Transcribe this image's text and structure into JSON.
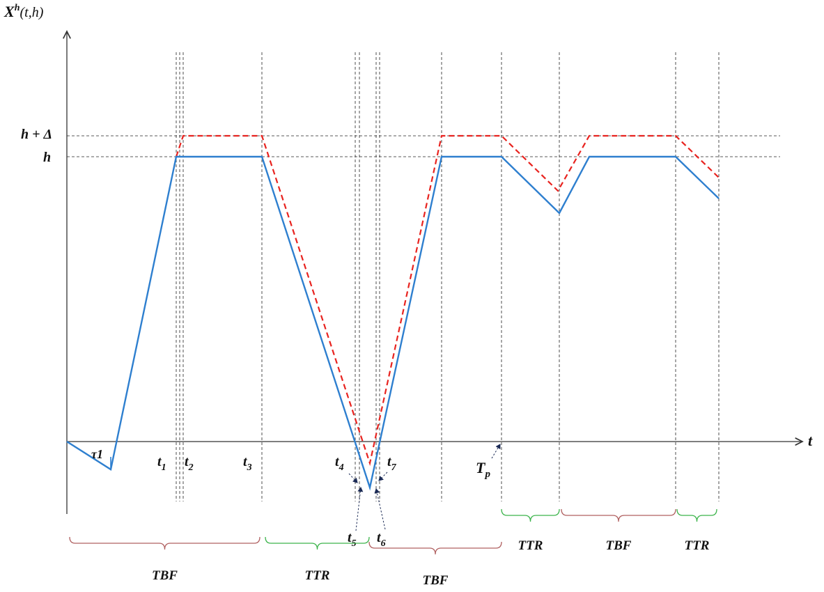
{
  "axes": {
    "y_label_main": "X",
    "y_label_sup": "h",
    "y_label_args": "(t,h)",
    "x_label": "t"
  },
  "levels": {
    "h_plus_delta": "h + Δ",
    "h": "h"
  },
  "time_labels": {
    "tau1": "τ1",
    "t1": "t",
    "t1_sub": "1",
    "t2": "t",
    "t2_sub": "2",
    "t3": "t",
    "t3_sub": "3",
    "t4": "t",
    "t4_sub": "4",
    "t5": "t",
    "t5_sub": "5",
    "t6": "t",
    "t6_sub": "6",
    "t7": "t",
    "t7_sub": "7",
    "tp": "T",
    "tp_sub": "p"
  },
  "intervals": [
    {
      "label": "TBF",
      "kind": "TBF"
    },
    {
      "label": "TTR",
      "kind": "TTR"
    },
    {
      "label": "TBF",
      "kind": "TBF"
    },
    {
      "label": "TTR",
      "kind": "TTR"
    },
    {
      "label": "TBF",
      "kind": "TBF"
    },
    {
      "label": "TTR",
      "kind": "TTR"
    }
  ],
  "colors": {
    "inventory_line": "#2e7fcf",
    "threshold_line": "#e8231f",
    "tbf_brace": "#b06060",
    "ttr_brace": "#3cb44b"
  }
}
